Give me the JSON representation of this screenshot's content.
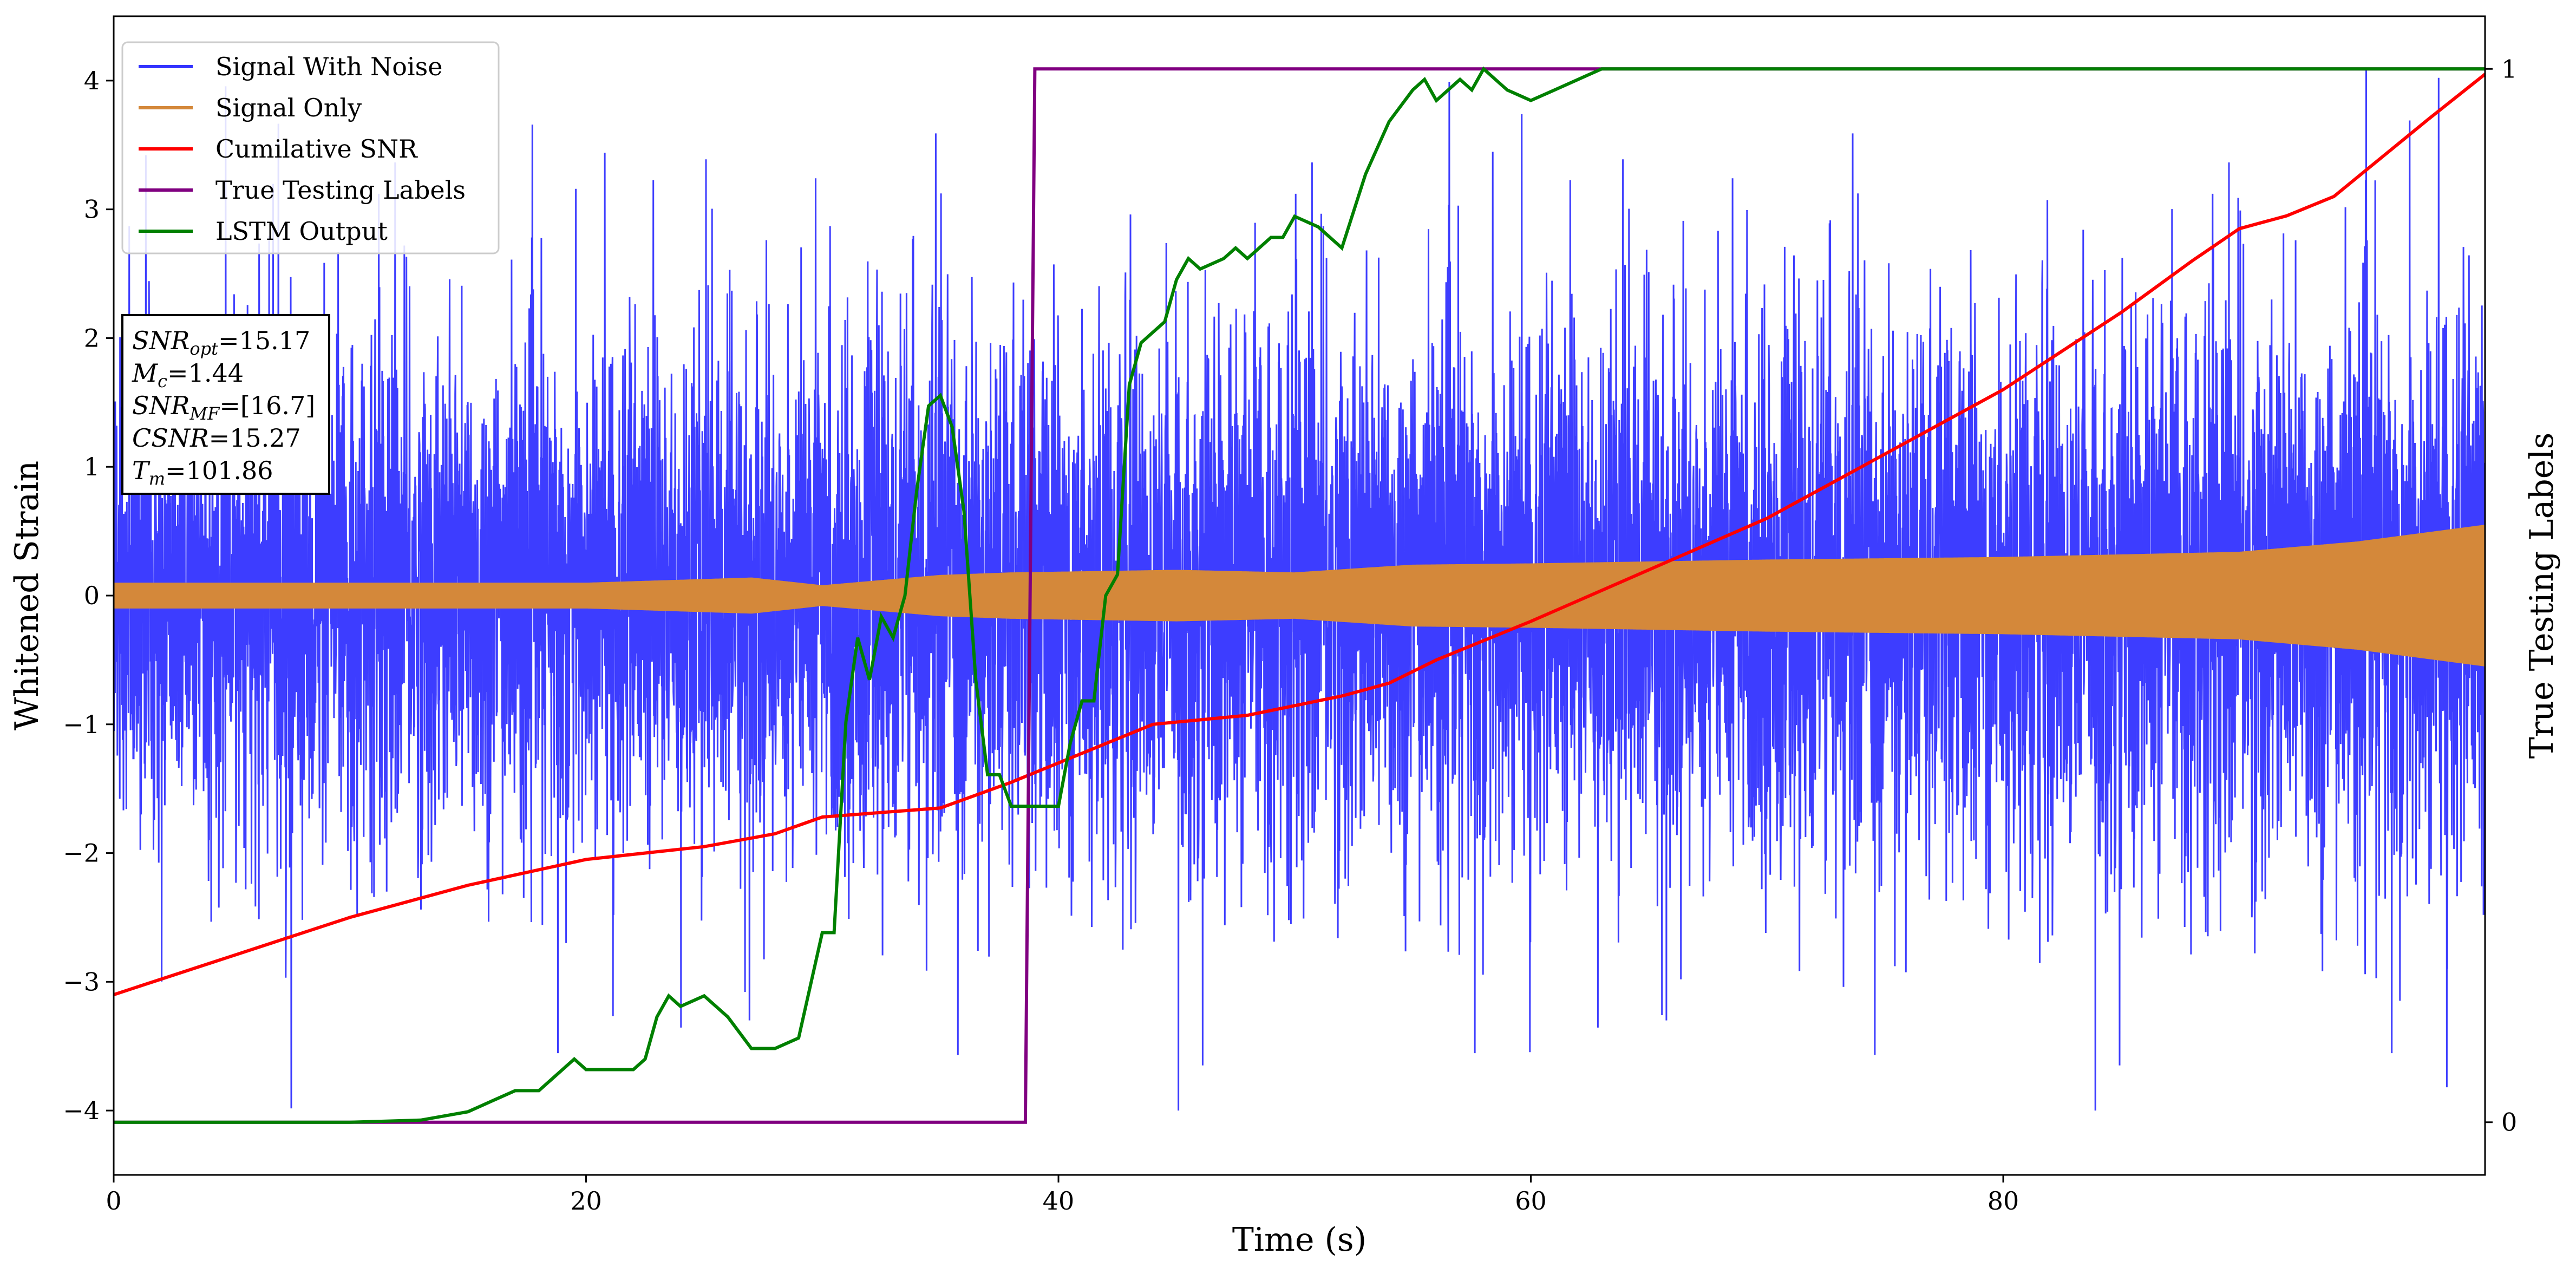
{
  "chart_data": {
    "type": "line",
    "xlabel": "Time (s)",
    "ylabel": "Whitened Strain",
    "y2label": "True Testing Labels",
    "xlim": [
      0,
      100.4
    ],
    "ylim": [
      -4.5,
      4.5
    ],
    "y2lim": [
      -0.05,
      1.05
    ],
    "x_ticks": [
      0,
      20,
      40,
      60,
      80
    ],
    "y_ticks": [
      -4,
      -3,
      -2,
      -1,
      0,
      1,
      2,
      3,
      4
    ],
    "y2_ticks": [
      0,
      1
    ],
    "grid": false,
    "legend_position": "top-left",
    "colors": {
      "signal_with_noise": "#3333ff",
      "signal_only": "#d4883a",
      "cumulative_snr": "#ff0000",
      "true_labels": "#800080",
      "lstm_output": "#008000"
    },
    "series": [
      {
        "name": "Signal With Noise",
        "axis": "left",
        "color": "#3333ff",
        "description_envelope": {
          "x": [
            0,
            10,
            20,
            30,
            40,
            50,
            60,
            70,
            80,
            90,
            100.4
          ],
          "typical_upper": [
            2.1,
            2.2,
            2.2,
            2.3,
            2.3,
            2.4,
            2.4,
            2.4,
            2.4,
            2.5,
            2.6
          ],
          "typical_lower": [
            -2.1,
            -2.2,
            -2.3,
            -2.3,
            -2.3,
            -2.4,
            -2.4,
            -2.4,
            -2.4,
            -2.5,
            -2.6
          ],
          "peak_max": 4.1,
          "peak_min": -4.0
        }
      },
      {
        "name": "Signal Only",
        "axis": "left",
        "color": "#d4883a",
        "amplitude_envelope": {
          "x": [
            0,
            10,
            20,
            27,
            30,
            35,
            38,
            45,
            50,
            55,
            60,
            70,
            80,
            90,
            95,
            100.4
          ],
          "amplitude": [
            0.1,
            0.1,
            0.1,
            0.14,
            0.08,
            0.16,
            0.18,
            0.2,
            0.18,
            0.24,
            0.25,
            0.28,
            0.3,
            0.34,
            0.42,
            0.55
          ]
        }
      },
      {
        "name": "Cumilative SNR",
        "axis": "left",
        "color": "#ff0000",
        "x": [
          0,
          5,
          10,
          15,
          20,
          25,
          28,
          30,
          35,
          38,
          40,
          42,
          44,
          48,
          52,
          54,
          56,
          60,
          65,
          70,
          75,
          80,
          85,
          88,
          90,
          92,
          94,
          96,
          98,
          100.4
        ],
        "y": [
          -3.1,
          -2.8,
          -2.5,
          -2.25,
          -2.05,
          -1.95,
          -1.85,
          -1.72,
          -1.65,
          -1.45,
          -1.3,
          -1.15,
          -1.0,
          -0.93,
          -0.78,
          -0.68,
          -0.5,
          -0.2,
          0.2,
          0.6,
          1.1,
          1.6,
          2.2,
          2.6,
          2.85,
          2.95,
          3.1,
          3.4,
          3.7,
          4.05
        ]
      },
      {
        "name": "True Testing Labels",
        "axis": "right",
        "color": "#800080",
        "x": [
          0,
          38.6,
          39.0,
          100.4
        ],
        "y": [
          0,
          0,
          1,
          1
        ]
      },
      {
        "name": "LSTM Output",
        "axis": "right",
        "color": "#008000",
        "x": [
          0,
          10,
          13,
          15,
          16,
          17,
          18,
          19,
          19.5,
          20,
          21,
          22,
          22.5,
          23,
          23.5,
          24,
          25,
          26,
          27,
          28,
          29,
          30,
          30.5,
          31,
          31.5,
          32,
          32.5,
          33,
          33.5,
          34,
          34.5,
          35,
          35.5,
          36,
          36.5,
          37,
          37.5,
          38,
          39,
          40,
          40.5,
          41,
          41.5,
          42,
          42.5,
          43,
          43.5,
          44,
          44.5,
          45,
          45.5,
          46,
          47,
          47.5,
          48,
          48.5,
          49,
          49.5,
          50,
          51,
          52,
          53,
          54,
          55,
          55.5,
          56,
          57,
          57.5,
          58,
          59,
          60,
          61,
          62,
          63,
          64,
          65,
          66,
          67,
          68,
          70,
          80,
          90,
          100.4
        ],
        "y": [
          0,
          0,
          0.002,
          0.01,
          0.02,
          0.03,
          0.03,
          0.05,
          0.06,
          0.05,
          0.05,
          0.05,
          0.06,
          0.1,
          0.12,
          0.11,
          0.12,
          0.1,
          0.07,
          0.07,
          0.08,
          0.18,
          0.18,
          0.38,
          0.46,
          0.42,
          0.48,
          0.46,
          0.5,
          0.6,
          0.68,
          0.69,
          0.66,
          0.58,
          0.42,
          0.33,
          0.33,
          0.3,
          0.3,
          0.3,
          0.36,
          0.4,
          0.4,
          0.5,
          0.52,
          0.7,
          0.74,
          0.75,
          0.76,
          0.8,
          0.82,
          0.81,
          0.82,
          0.83,
          0.82,
          0.83,
          0.84,
          0.84,
          0.86,
          0.85,
          0.83,
          0.9,
          0.95,
          0.98,
          0.99,
          0.97,
          0.99,
          0.98,
          1.0,
          0.98,
          0.97,
          0.98,
          0.99,
          1.0,
          1.0,
          1.0,
          1.0,
          1.0,
          1.0,
          1.0,
          1.0,
          1.0,
          1.0
        ]
      }
    ],
    "info_box": {
      "lines": [
        {
          "label": "SNR",
          "sub": "opt",
          "value": "=15.17"
        },
        {
          "label": "M",
          "sub": "c",
          "value": "=1.44"
        },
        {
          "label": "SNR",
          "sub": "MF",
          "value": "=[16.7]"
        },
        {
          "label": "CSNR",
          "sub": "",
          "value": "=15.27"
        },
        {
          "label": "T",
          "sub": "m",
          "value": "=101.86"
        }
      ]
    }
  }
}
